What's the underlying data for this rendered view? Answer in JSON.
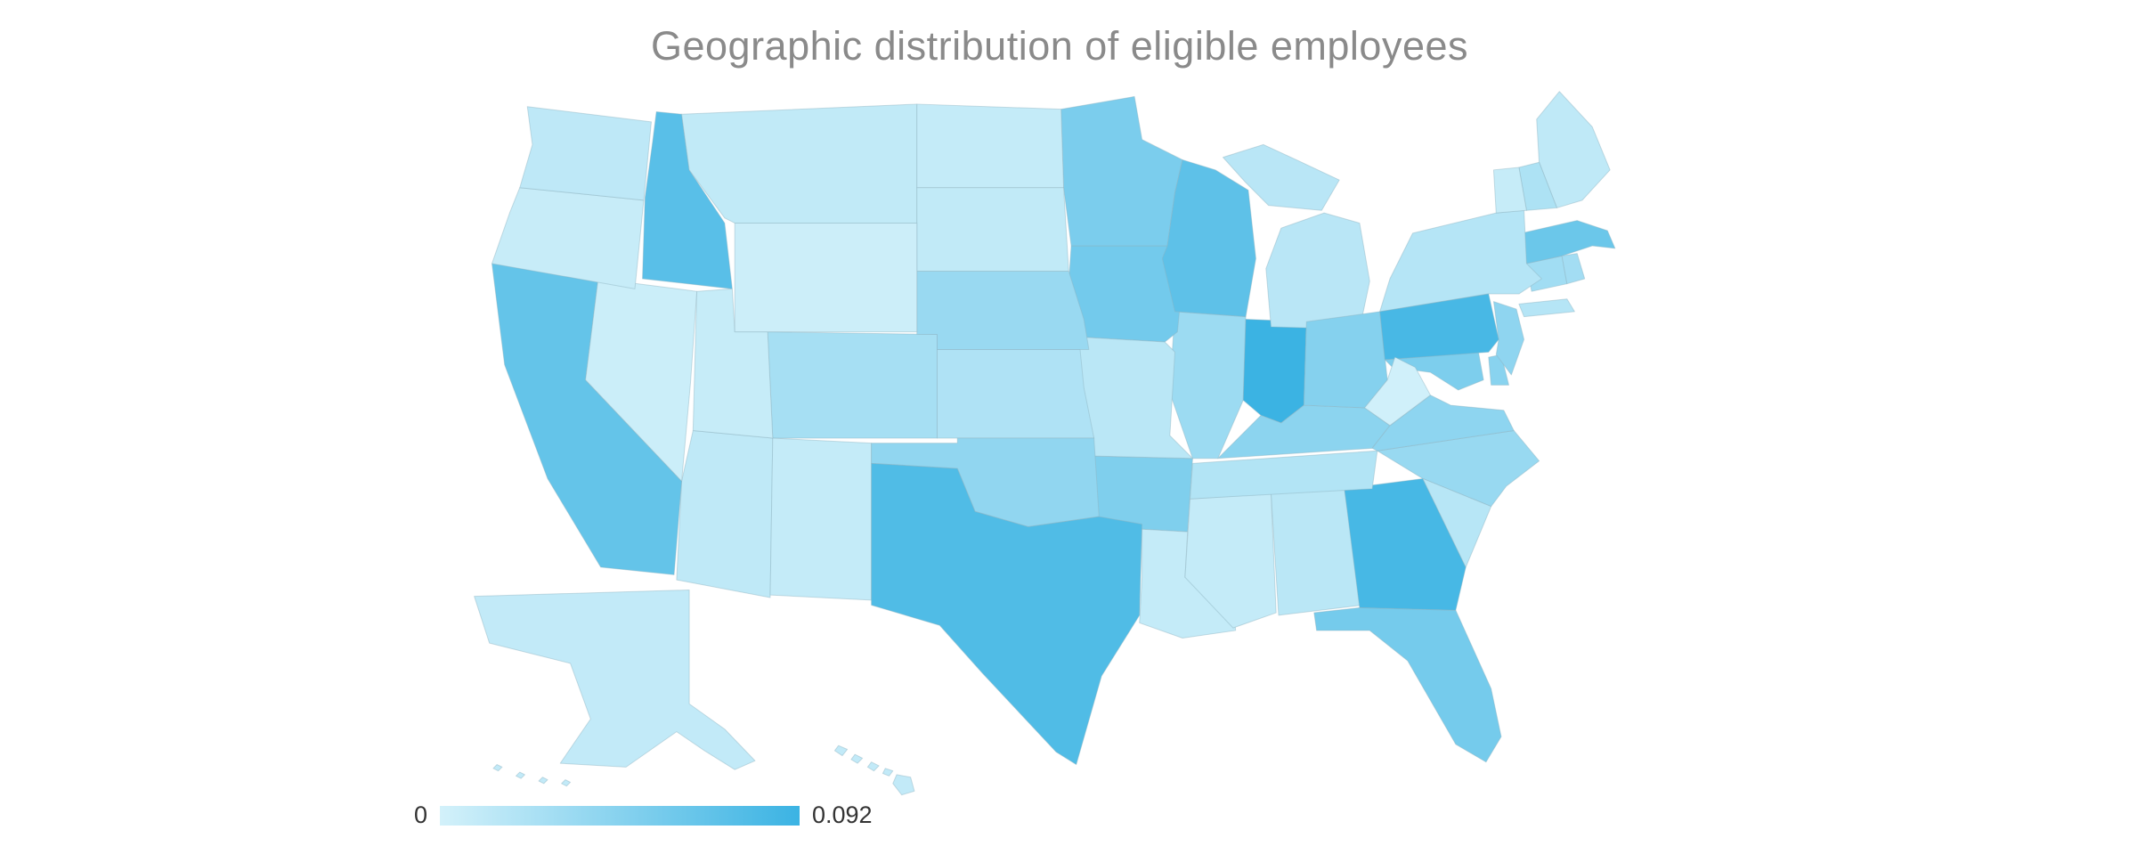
{
  "page": {
    "background_color": "#ffffff"
  },
  "chart": {
    "title": "Geographic distribution of eligible employees",
    "title_color": "#8a8a8a"
  },
  "colorbar": {
    "min_label": "0",
    "max_label": "0.092",
    "min_value": 0,
    "max_value": 0.092,
    "min_color": "#d3f1fa",
    "max_color": "#3bb3e3",
    "orientation": "horizontal",
    "position": "bottom-left"
  },
  "chart_data": {
    "type": "heatmap",
    "subtype": "choropleth-usa-states",
    "title": "Geographic distribution of eligible employees",
    "projection": "albers-usa",
    "legend_position": "bottom-left",
    "grid": false,
    "colorscale": {
      "min_value": 0,
      "max_value": 0.092,
      "min_color": "#d3f1fa",
      "max_color": "#3bb3e3"
    },
    "value_description": "fraction of eligible employees per state (estimated from fill shade)",
    "states": [
      {
        "code": "AL",
        "name": "Alabama",
        "value": 0.015
      },
      {
        "code": "AK",
        "name": "Alaska",
        "value": 0.01
      },
      {
        "code": "AZ",
        "name": "Arizona",
        "value": 0.012
      },
      {
        "code": "AR",
        "name": "Arkansas",
        "value": 0.051
      },
      {
        "code": "CA",
        "name": "California",
        "value": 0.067
      },
      {
        "code": "CO",
        "name": "Colorado",
        "value": 0.027
      },
      {
        "code": "CT",
        "name": "Connecticut",
        "value": 0.03
      },
      {
        "code": "DE",
        "name": "Delaware",
        "value": 0.045
      },
      {
        "code": "FL",
        "name": "Florida",
        "value": 0.057
      },
      {
        "code": "GA",
        "name": "Georgia",
        "value": 0.085
      },
      {
        "code": "HI",
        "name": "Hawaii",
        "value": 0.01
      },
      {
        "code": "ID",
        "name": "Idaho",
        "value": 0.074
      },
      {
        "code": "IL",
        "name": "Illinois",
        "value": 0.033
      },
      {
        "code": "IN",
        "name": "Indiana",
        "value": 0.092
      },
      {
        "code": "IA",
        "name": "Iowa",
        "value": 0.058
      },
      {
        "code": "KS",
        "name": "Kansas",
        "value": 0.022
      },
      {
        "code": "KY",
        "name": "Kentucky",
        "value": 0.043
      },
      {
        "code": "LA",
        "name": "Louisiana",
        "value": 0.009
      },
      {
        "code": "ME",
        "name": "Maine",
        "value": 0.012
      },
      {
        "code": "MD",
        "name": "Maryland",
        "value": 0.052
      },
      {
        "code": "MA",
        "name": "Massachusetts",
        "value": 0.063
      },
      {
        "code": "MI",
        "name": "Michigan",
        "value": 0.016
      },
      {
        "code": "MN",
        "name": "Minnesota",
        "value": 0.053
      },
      {
        "code": "MS",
        "name": "Mississippi",
        "value": 0.009
      },
      {
        "code": "MO",
        "name": "Missouri",
        "value": 0.015
      },
      {
        "code": "MT",
        "name": "Montana",
        "value": 0.011
      },
      {
        "code": "NE",
        "name": "Nebraska",
        "value": 0.035
      },
      {
        "code": "NV",
        "name": "Nevada",
        "value": 0.005
      },
      {
        "code": "NH",
        "name": "New Hampshire",
        "value": 0.023
      },
      {
        "code": "NJ",
        "name": "New Jersey",
        "value": 0.041
      },
      {
        "code": "NM",
        "name": "New Mexico",
        "value": 0.009
      },
      {
        "code": "NY",
        "name": "New York",
        "value": 0.018
      },
      {
        "code": "NC",
        "name": "North Carolina",
        "value": 0.036
      },
      {
        "code": "ND",
        "name": "North Dakota",
        "value": 0.009
      },
      {
        "code": "OH",
        "name": "Ohio",
        "value": 0.047
      },
      {
        "code": "OK",
        "name": "Oklahoma",
        "value": 0.04
      },
      {
        "code": "OR",
        "name": "Oregon",
        "value": 0.007
      },
      {
        "code": "PA",
        "name": "Pennsylvania",
        "value": 0.084
      },
      {
        "code": "RI",
        "name": "Rhode Island",
        "value": 0.029
      },
      {
        "code": "SC",
        "name": "South Carolina",
        "value": 0.017
      },
      {
        "code": "SD",
        "name": "South Dakota",
        "value": 0.011
      },
      {
        "code": "TN",
        "name": "Tennessee",
        "value": 0.02
      },
      {
        "code": "TX",
        "name": "Texas",
        "value": 0.079
      },
      {
        "code": "UT",
        "name": "Utah",
        "value": 0.008
      },
      {
        "code": "VT",
        "name": "Vermont",
        "value": 0.008
      },
      {
        "code": "VA",
        "name": "Virginia",
        "value": 0.042
      },
      {
        "code": "WA",
        "name": "Washington",
        "value": 0.013
      },
      {
        "code": "WV",
        "name": "West Virginia",
        "value": 0.002
      },
      {
        "code": "WI",
        "name": "Wisconsin",
        "value": 0.071
      },
      {
        "code": "WY",
        "name": "Wyoming",
        "value": 0.004
      }
    ]
  }
}
